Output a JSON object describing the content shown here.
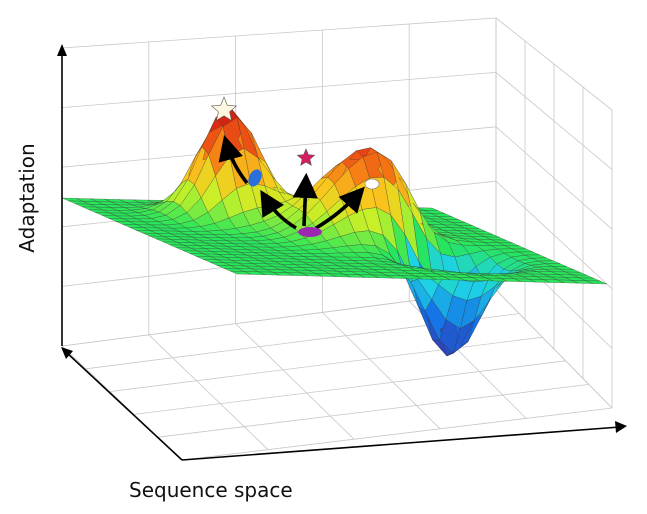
{
  "labels": {
    "y_axis": "Adaptation",
    "x_axis": "Sequence space"
  },
  "colors": {
    "grid": "#c8c8c8",
    "axis": "#000000",
    "mesh_line": "#333333",
    "star_top": "#fff8e0",
    "star_middle": "#d81b60",
    "marker_blue": "#2a6fdc",
    "marker_white": "#ffffff",
    "marker_purple": "#9c27b0",
    "arrow": "#000000"
  },
  "markers": [
    {
      "name": "global-peak-star",
      "shape": "star"
    },
    {
      "name": "local-peak-star",
      "shape": "star"
    },
    {
      "name": "blue-marker",
      "shape": "ellipse"
    },
    {
      "name": "white-marker",
      "shape": "ellipse"
    },
    {
      "name": "purple-marker",
      "shape": "ellipse"
    }
  ]
}
